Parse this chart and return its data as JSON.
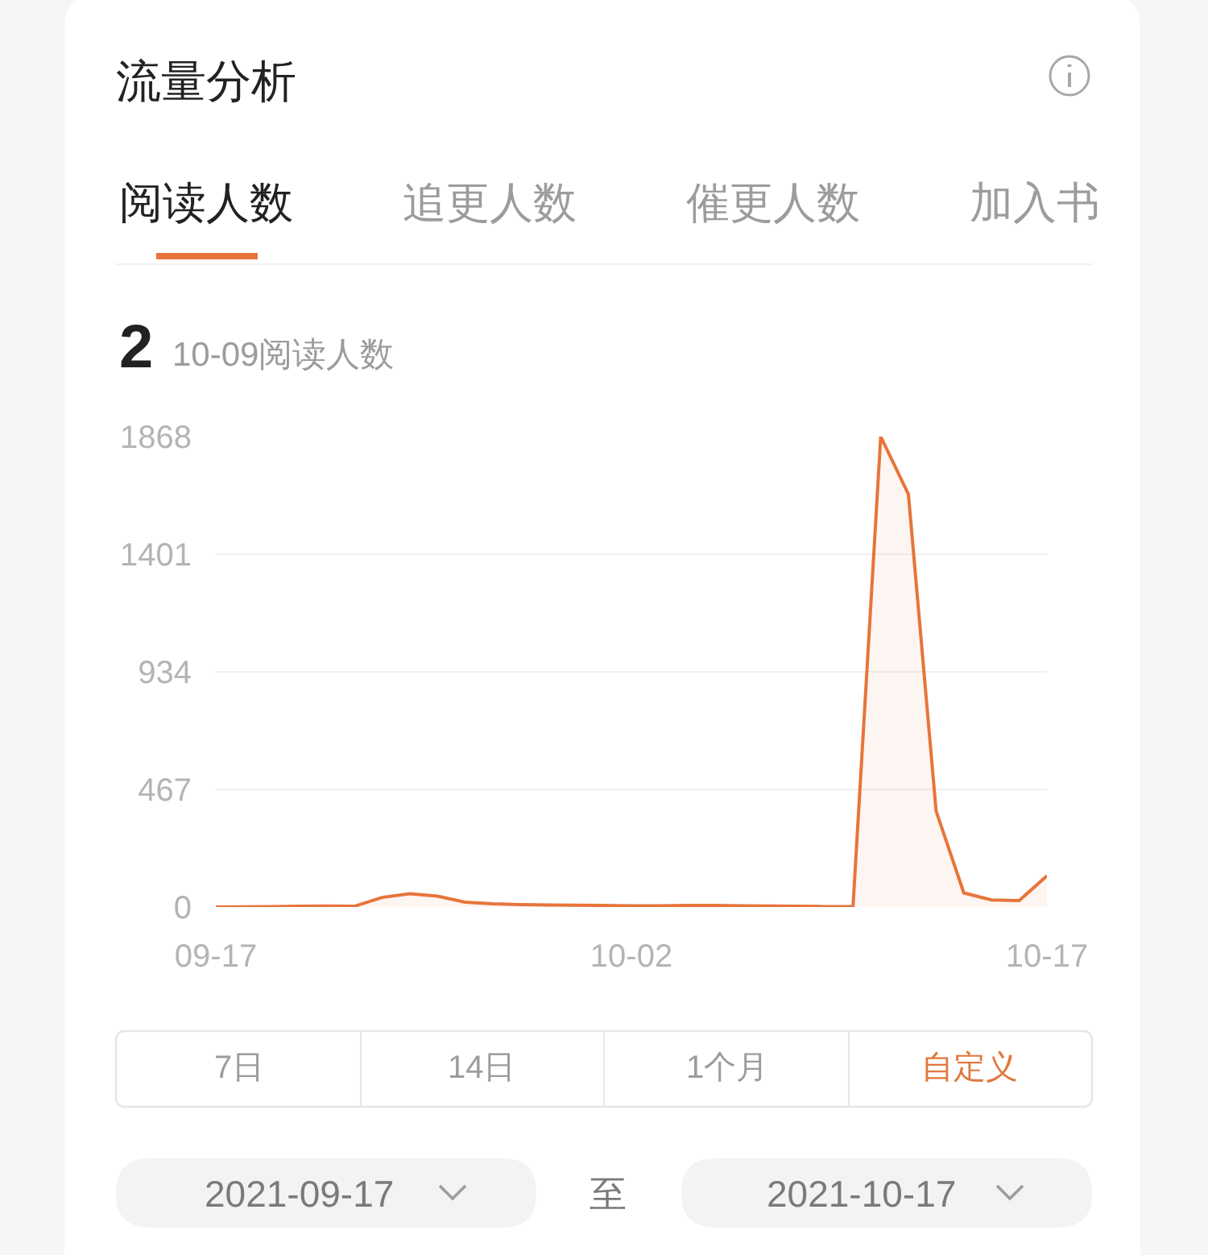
{
  "chart_data": {
    "type": "area",
    "title": "流量分析",
    "x": [
      "2021-09-17",
      "2021-09-18",
      "2021-09-19",
      "2021-09-20",
      "2021-09-21",
      "2021-09-22",
      "2021-09-23",
      "2021-09-24",
      "2021-09-25",
      "2021-09-26",
      "2021-09-27",
      "2021-09-28",
      "2021-09-29",
      "2021-09-30",
      "2021-10-01",
      "2021-10-02",
      "2021-10-03",
      "2021-10-04",
      "2021-10-05",
      "2021-10-06",
      "2021-10-07",
      "2021-10-08",
      "2021-10-09",
      "2021-10-10",
      "2021-10-11",
      "2021-10-12",
      "2021-10-13",
      "2021-10-14",
      "2021-10-15",
      "2021-10-16",
      "2021-10-17"
    ],
    "values": [
      0,
      1,
      2,
      3,
      4,
      3,
      38,
      53,
      43,
      19,
      13,
      10,
      8,
      7,
      6,
      5,
      5,
      6,
      6,
      5,
      4,
      3,
      2,
      2,
      1868,
      1639,
      381,
      56,
      28,
      26,
      124
    ],
    "color": "#e8743a",
    "line_style": "solid",
    "grid": "y",
    "xlim": [
      "2021-09-17",
      "2021-10-17"
    ],
    "xticks": [
      {
        "value": "2021-09-17",
        "label": "09-17"
      },
      {
        "value": "2021-10-02",
        "label": "10-02"
      },
      {
        "value": "2021-10-17",
        "label": "10-17"
      }
    ],
    "ylim": [
      0,
      1868
    ],
    "yticks": [
      0,
      467,
      934,
      1401,
      1868
    ],
    "annotations": [
      "阅读人数",
      "追更人数",
      "催更人数",
      "加入书",
      "2",
      "10-09阅读人数",
      "7日",
      "14日",
      "1个月",
      "自定义",
      "2021-09-17",
      "至",
      "2021-10-17"
    ]
  }
}
